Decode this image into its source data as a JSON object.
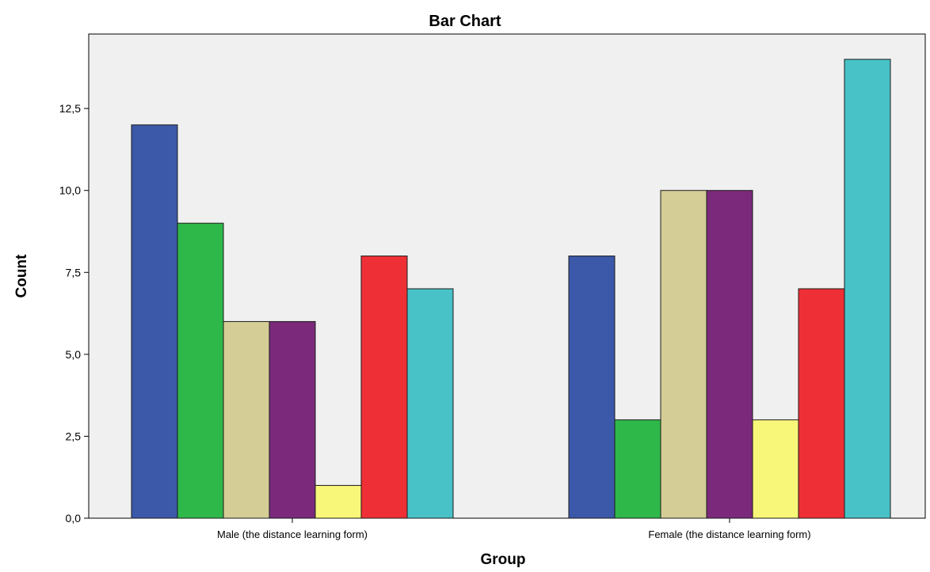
{
  "chart_data": {
    "type": "bar",
    "title": "Bar Chart",
    "xlabel": "Group",
    "ylabel": "Count",
    "categories": [
      "Male (the distance learning form)",
      "Female (the distance learning form)"
    ],
    "ylim": [
      0,
      14
    ],
    "yticks": [
      0,
      2.5,
      5,
      7.5,
      10,
      12.5
    ],
    "ytick_labels": [
      "0,0",
      "2,5",
      "5,0",
      "7,5",
      "10,0",
      "12,5"
    ],
    "grid": false,
    "legend": "none",
    "series": [
      {
        "color": "#3c58a8",
        "values": [
          12,
          8
        ]
      },
      {
        "color": "#2fb84a",
        "values": [
          9,
          3
        ]
      },
      {
        "color": "#d4cd96",
        "values": [
          6,
          10
        ]
      },
      {
        "color": "#7b2a7b",
        "values": [
          6,
          10
        ]
      },
      {
        "color": "#f9f77a",
        "values": [
          1,
          3
        ]
      },
      {
        "color": "#ee3036",
        "values": [
          8,
          7
        ]
      },
      {
        "color": "#48c2c6",
        "values": [
          7,
          14
        ]
      }
    ],
    "colors": {
      "plot_background": "#f0f0f0",
      "bar_edge": "#1a1a1a"
    }
  }
}
